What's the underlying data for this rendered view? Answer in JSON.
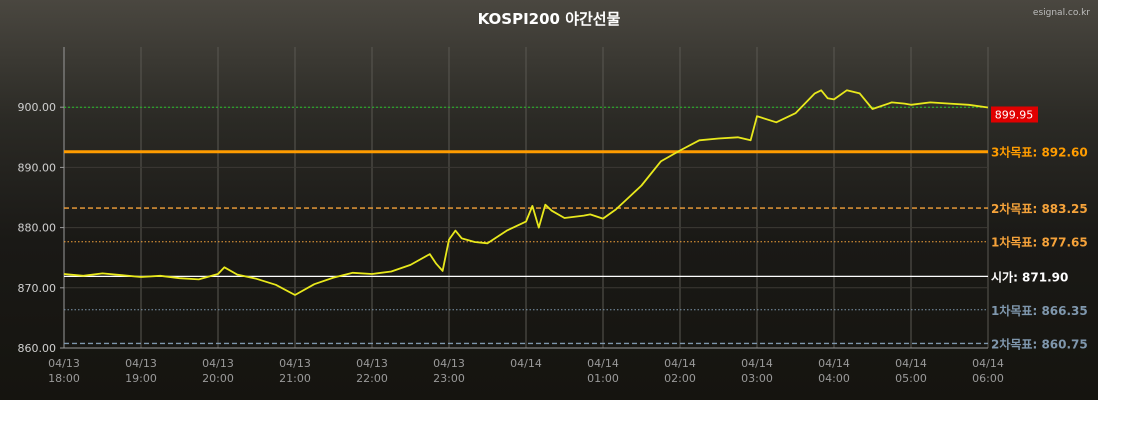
{
  "chart_data": {
    "type": "line",
    "title": "KOSPI200 야간선물",
    "source": "esignal.co.kr",
    "ylim": [
      860,
      910
    ],
    "yticks": [
      "860.00",
      "870.00",
      "880.00",
      "890.00",
      "900.00"
    ],
    "xticks": [
      {
        "date": "04/13",
        "time": "18:00"
      },
      {
        "date": "04/13",
        "time": "19:00"
      },
      {
        "date": "04/13",
        "time": "20:00"
      },
      {
        "date": "04/13",
        "time": "21:00"
      },
      {
        "date": "04/13",
        "time": "22:00"
      },
      {
        "date": "04/13",
        "time": "23:00"
      },
      {
        "date": "04/14",
        "time": ""
      },
      {
        "date": "04/14",
        "time": "01:00"
      },
      {
        "date": "04/14",
        "time": "02:00"
      },
      {
        "date": "04/14",
        "time": "03:00"
      },
      {
        "date": "04/14",
        "time": "04:00"
      },
      {
        "date": "04/14",
        "time": "05:00"
      },
      {
        "date": "04/14",
        "time": "06:00"
      }
    ],
    "series": [
      {
        "color": "#e8e81c",
        "x": [
          "04/13 18:00",
          "04/13 18:15",
          "04/13 18:30",
          "04/13 18:45",
          "04/13 19:00",
          "04/13 19:15",
          "04/13 19:30",
          "04/13 19:45",
          "04/13 20:00",
          "04/13 20:05",
          "04/13 20:15",
          "04/13 20:30",
          "04/13 20:45",
          "04/13 21:00",
          "04/13 21:15",
          "04/13 21:30",
          "04/13 21:45",
          "04/13 22:00",
          "04/13 22:15",
          "04/13 22:30",
          "04/13 22:45",
          "04/13 22:50",
          "04/13 22:55",
          "04/13 23:00",
          "04/13 23:05",
          "04/13 23:10",
          "04/13 23:20",
          "04/13 23:30",
          "04/13 23:45",
          "04/14 00:00",
          "04/14 00:05",
          "04/14 00:10",
          "04/14 00:15",
          "04/14 00:20",
          "04/14 00:30",
          "04/14 00:45",
          "04/14 00:50",
          "04/14 01:00",
          "04/14 01:10",
          "04/14 01:20",
          "04/14 01:30",
          "04/14 01:45",
          "04/14 02:00",
          "04/14 02:15",
          "04/14 02:30",
          "04/14 02:45",
          "04/14 02:55",
          "04/14 03:00",
          "04/14 03:15",
          "04/14 03:30",
          "04/14 03:45",
          "04/14 03:50",
          "04/14 03:55",
          "04/14 04:00",
          "04/14 04:10",
          "04/14 04:20",
          "04/14 04:30",
          "04/14 04:45",
          "04/14 04:55",
          "04/14 05:00",
          "04/14 05:15",
          "04/14 05:30",
          "04/14 05:45",
          "04/14 06:00"
        ],
        "values": [
          872.3,
          872.0,
          872.4,
          872.1,
          871.8,
          872.0,
          871.6,
          871.4,
          872.3,
          873.4,
          872.2,
          871.5,
          870.5,
          868.8,
          870.6,
          871.7,
          872.5,
          872.3,
          872.7,
          873.8,
          875.6,
          874.0,
          872.8,
          878.0,
          879.5,
          878.2,
          877.6,
          877.4,
          879.5,
          881.0,
          883.6,
          880.0,
          883.8,
          882.8,
          881.6,
          882.0,
          882.2,
          881.5,
          883.0,
          885.0,
          887.0,
          891.0,
          892.8,
          894.5,
          894.8,
          895.0,
          894.5,
          898.5,
          897.5,
          899.0,
          902.3,
          902.8,
          901.5,
          901.3,
          902.8,
          902.3,
          899.7,
          900.8,
          900.6,
          900.4,
          900.8,
          900.6,
          900.4,
          899.95
        ]
      }
    ],
    "last_value": "899.95",
    "last_value_color": "#e00000",
    "levels": [
      {
        "label": "3차목표: 892.60",
        "value": 892.6,
        "color": "#ff9c00",
        "style": "solid-thick"
      },
      {
        "label": "2차목표: 883.25",
        "value": 883.25,
        "color": "#f5a23a",
        "style": "dashed"
      },
      {
        "label": "1차목표: 877.65",
        "value": 877.65,
        "color": "#f5a23a",
        "style": "dotted"
      },
      {
        "label": "시가: 871.90",
        "value": 871.9,
        "color": "#ffffff",
        "style": "solid-thin"
      },
      {
        "label": "1차목표: 866.35",
        "value": 866.35,
        "color": "#7f97ad",
        "style": "dotted"
      },
      {
        "label": "2차목표: 860.75",
        "value": 860.75,
        "color": "#7f97ad",
        "style": "dashed"
      }
    ],
    "reference_line": {
      "value": 900,
      "color": "#2ac12a",
      "style": "dotted"
    },
    "grid": true
  }
}
